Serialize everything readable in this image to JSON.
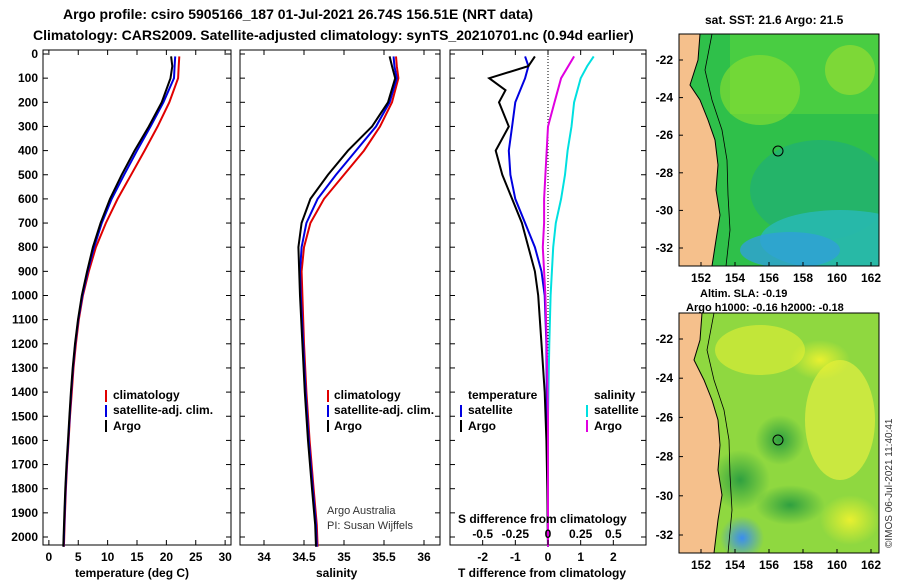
{
  "titles": {
    "line1": "Argo profile: csiro 5905166_187 01-Jul-2021 26.74S 156.51E (NRT data)",
    "line2": "Climatology: CARS2009. Satellite-adjusted climatology: synTS_20210701.nc (0.94d earlier)"
  },
  "colors": {
    "climatology": "#e00000",
    "satellite": "#0000e0",
    "argo": "#000000",
    "sat_salinity": "#00e0e0",
    "argo_salinity": "#e000e0",
    "land": "#f5c08c"
  },
  "chart_data": [
    {
      "id": "temperature",
      "type": "line",
      "xlabel": "temperature (deg C)",
      "ylabel": "",
      "xlim": [
        -1,
        31
      ],
      "ylim": [
        2050,
        0
      ],
      "xticks": [
        0,
        5,
        10,
        15,
        20,
        25,
        30
      ],
      "yticks": [
        0,
        100,
        200,
        300,
        400,
        500,
        600,
        700,
        800,
        900,
        1000,
        1100,
        1200,
        1300,
        1400,
        1500,
        1600,
        1700,
        1800,
        1900,
        2000
      ],
      "legend": [
        "climatology",
        "satellite-adj. clim.",
        "Argo"
      ],
      "series": [
        {
          "name": "climatology",
          "color": "#e00000",
          "points": [
            [
              22.2,
              10
            ],
            [
              22.1,
              50
            ],
            [
              22.0,
              100
            ],
            [
              20.5,
              200
            ],
            [
              18.5,
              300
            ],
            [
              16.3,
              400
            ],
            [
              14.0,
              500
            ],
            [
              11.7,
              600
            ],
            [
              9.7,
              700
            ],
            [
              8.0,
              800
            ],
            [
              6.8,
              900
            ],
            [
              5.8,
              1000
            ],
            [
              5.1,
              1100
            ],
            [
              4.6,
              1200
            ],
            [
              4.2,
              1300
            ],
            [
              3.9,
              1400
            ],
            [
              3.6,
              1500
            ],
            [
              3.35,
              1600
            ],
            [
              3.1,
              1700
            ],
            [
              2.9,
              1800
            ],
            [
              2.75,
              1900
            ],
            [
              2.6,
              2000
            ],
            [
              2.55,
              2040
            ]
          ]
        },
        {
          "name": "satellite-adj. clim.",
          "color": "#0000e0",
          "points": [
            [
              21.5,
              10
            ],
            [
              21.4,
              50
            ],
            [
              21.3,
              100
            ],
            [
              19.5,
              200
            ],
            [
              17.3,
              300
            ],
            [
              15.0,
              400
            ],
            [
              12.8,
              500
            ],
            [
              10.7,
              600
            ],
            [
              9.0,
              700
            ],
            [
              7.7,
              800
            ],
            [
              6.6,
              900
            ],
            [
              5.7,
              1000
            ],
            [
              5.0,
              1100
            ],
            [
              4.5,
              1200
            ],
            [
              4.1,
              1300
            ],
            [
              3.8,
              1400
            ],
            [
              3.55,
              1500
            ],
            [
              3.3,
              1600
            ],
            [
              3.05,
              1700
            ],
            [
              2.85,
              1800
            ],
            [
              2.7,
              1900
            ],
            [
              2.55,
              2000
            ],
            [
              2.5,
              2040
            ]
          ]
        },
        {
          "name": "Argo",
          "color": "#000000",
          "points": [
            [
              20.8,
              10
            ],
            [
              21.0,
              50
            ],
            [
              20.7,
              100
            ],
            [
              19.2,
              200
            ],
            [
              17.0,
              300
            ],
            [
              14.6,
              400
            ],
            [
              12.4,
              500
            ],
            [
              10.4,
              600
            ],
            [
              8.8,
              700
            ],
            [
              7.5,
              800
            ],
            [
              6.5,
              900
            ],
            [
              5.6,
              1000
            ],
            [
              4.95,
              1100
            ],
            [
              4.45,
              1200
            ],
            [
              4.05,
              1300
            ],
            [
              3.75,
              1400
            ],
            [
              3.5,
              1500
            ],
            [
              3.25,
              1600
            ],
            [
              3.0,
              1700
            ],
            [
              2.8,
              1800
            ],
            [
              2.65,
              1900
            ],
            [
              2.5,
              2000
            ],
            [
              2.45,
              2040
            ]
          ]
        }
      ]
    },
    {
      "id": "salinity",
      "type": "line",
      "xlabel": "salinity",
      "xlim": [
        33.7,
        36.2
      ],
      "ylim": [
        2050,
        0
      ],
      "xticks": [
        34,
        34.5,
        35,
        35.5,
        36
      ],
      "legend": [
        "climatology",
        "satellite-adj. clim.",
        "Argo"
      ],
      "annotation": [
        "Argo Australia",
        "PI: Susan Wijffels"
      ],
      "series": [
        {
          "name": "climatology",
          "color": "#e00000",
          "points": [
            [
              35.65,
              10
            ],
            [
              35.66,
              50
            ],
            [
              35.68,
              100
            ],
            [
              35.6,
              200
            ],
            [
              35.45,
              300
            ],
            [
              35.25,
              400
            ],
            [
              35.0,
              500
            ],
            [
              34.75,
              600
            ],
            [
              34.58,
              700
            ],
            [
              34.5,
              800
            ],
            [
              34.47,
              900
            ],
            [
              34.48,
              1000
            ],
            [
              34.5,
              1200
            ],
            [
              34.53,
              1400
            ],
            [
              34.57,
              1600
            ],
            [
              34.62,
              1800
            ],
            [
              34.66,
              1950
            ],
            [
              34.67,
              2040
            ]
          ]
        },
        {
          "name": "satellite-adj. clim.",
          "color": "#0000e0",
          "points": [
            [
              35.62,
              10
            ],
            [
              35.63,
              50
            ],
            [
              35.66,
              100
            ],
            [
              35.57,
              200
            ],
            [
              35.4,
              300
            ],
            [
              35.15,
              400
            ],
            [
              34.9,
              500
            ],
            [
              34.67,
              600
            ],
            [
              34.53,
              700
            ],
            [
              34.47,
              800
            ],
            [
              34.45,
              900
            ],
            [
              34.46,
              1000
            ],
            [
              34.49,
              1200
            ],
            [
              34.52,
              1400
            ],
            [
              34.56,
              1600
            ],
            [
              34.61,
              1800
            ],
            [
              34.65,
              1950
            ],
            [
              34.66,
              2040
            ]
          ]
        },
        {
          "name": "Argo",
          "color": "#000000",
          "points": [
            [
              35.57,
              10
            ],
            [
              35.6,
              50
            ],
            [
              35.64,
              100
            ],
            [
              35.55,
              200
            ],
            [
              35.35,
              300
            ],
            [
              35.05,
              400
            ],
            [
              34.8,
              500
            ],
            [
              34.58,
              600
            ],
            [
              34.47,
              700
            ],
            [
              34.43,
              800
            ],
            [
              34.44,
              900
            ],
            [
              34.45,
              1000
            ],
            [
              34.48,
              1200
            ],
            [
              34.51,
              1400
            ],
            [
              34.55,
              1600
            ],
            [
              34.6,
              1800
            ],
            [
              34.64,
              1950
            ],
            [
              34.65,
              2040
            ]
          ]
        }
      ]
    },
    {
      "id": "difference",
      "type": "line",
      "xlabel": "T difference from climatology",
      "xlabel2": "S difference from climatology",
      "xlim": [
        -3,
        3
      ],
      "ylim": [
        2050,
        0
      ],
      "xticks": [
        -2,
        -1,
        0,
        1,
        2
      ],
      "xticks_S": [
        -0.5,
        -0.25,
        0,
        0.25,
        0.5
      ],
      "legend": [
        "temperature",
        "satellite",
        "Argo",
        "salinity",
        "satellite",
        "Argo"
      ],
      "series": [
        {
          "name": "T satellite",
          "color": "#0000e0",
          "points": [
            [
              -0.7,
              10
            ],
            [
              -0.6,
              50
            ],
            [
              -0.7,
              100
            ],
            [
              -1.0,
              200
            ],
            [
              -1.1,
              300
            ],
            [
              -1.2,
              400
            ],
            [
              -1.15,
              500
            ],
            [
              -1.0,
              600
            ],
            [
              -0.7,
              700
            ],
            [
              -0.4,
              800
            ],
            [
              -0.2,
              900
            ],
            [
              -0.1,
              1000
            ],
            [
              -0.05,
              1200
            ],
            [
              -0.03,
              1500
            ],
            [
              0,
              2040
            ]
          ]
        },
        {
          "name": "T Argo",
          "color": "#000000",
          "points": [
            [
              -0.4,
              10
            ],
            [
              -0.6,
              50
            ],
            [
              -1.8,
              100
            ],
            [
              -1.3,
              150
            ],
            [
              -1.5,
              200
            ],
            [
              -1.2,
              300
            ],
            [
              -1.6,
              400
            ],
            [
              -1.4,
              500
            ],
            [
              -1.1,
              600
            ],
            [
              -0.8,
              700
            ],
            [
              -0.6,
              800
            ],
            [
              -0.4,
              900
            ],
            [
              -0.3,
              1000
            ],
            [
              -0.2,
              1200
            ],
            [
              -0.1,
              1400
            ],
            [
              -0.05,
              1600
            ],
            [
              -0.02,
              1800
            ],
            [
              0,
              2040
            ]
          ]
        },
        {
          "name": "S satellite",
          "color": "#00e0e0",
          "points": [
            [
              0.35,
              10
            ],
            [
              0.3,
              50
            ],
            [
              0.25,
              100
            ],
            [
              0.2,
              200
            ],
            [
              0.18,
              300
            ],
            [
              0.15,
              400
            ],
            [
              0.13,
              500
            ],
            [
              0.1,
              600
            ],
            [
              0.06,
              700
            ],
            [
              0.04,
              800
            ],
            [
              0.03,
              900
            ],
            [
              0.02,
              1000
            ],
            [
              0.01,
              1200
            ],
            [
              0,
              1500
            ],
            [
              0,
              2040
            ]
          ]
        },
        {
          "name": "S Argo",
          "color": "#e000e0",
          "points": [
            [
              0.2,
              10
            ],
            [
              0.1,
              100
            ],
            [
              0.05,
              200
            ],
            [
              0.0,
              300
            ],
            [
              -0.01,
              400
            ],
            [
              -0.02,
              500
            ],
            [
              -0.03,
              600
            ],
            [
              -0.03,
              700
            ],
            [
              -0.04,
              800
            ],
            [
              -0.03,
              900
            ],
            [
              -0.02,
              1000
            ],
            [
              -0.01,
              1200
            ],
            [
              0,
              1500
            ],
            [
              0,
              2040
            ]
          ]
        }
      ]
    }
  ],
  "maps": [
    {
      "title": "sat. SST: 21.6 Argo: 21.5",
      "lon_ticks": [
        "152",
        "154",
        "156",
        "158",
        "160",
        "162"
      ],
      "lat_ticks": [
        "-22",
        "-24",
        "-26",
        "-28",
        "-30",
        "-32"
      ]
    },
    {
      "title_line1": "Altim. SLA: -0.19",
      "title_line2": "Argo h1000: -0.16 h2000: -0.18",
      "lon_ticks": [
        "152",
        "154",
        "156",
        "158",
        "160",
        "162"
      ],
      "lat_ticks": [
        "-22",
        "-24",
        "-26",
        "-28",
        "-30",
        "-32"
      ]
    }
  ],
  "footer": {
    "credit": "©IMOS 06-Jul-2021 11:40:41"
  },
  "legend_labels": {
    "climatology": "climatology",
    "satellite_adj": "satellite-adj. clim.",
    "argo": "Argo",
    "temperature": "temperature",
    "salinity": "salinity",
    "satellite": "satellite"
  },
  "annotation": {
    "line1": "Argo Australia",
    "line2": "PI: Susan Wijffels"
  },
  "axis_labels": {
    "temperature": "temperature (deg C)",
    "salinity": "salinity",
    "t_diff": "T difference from climatology",
    "s_diff": "S difference from climatology"
  }
}
